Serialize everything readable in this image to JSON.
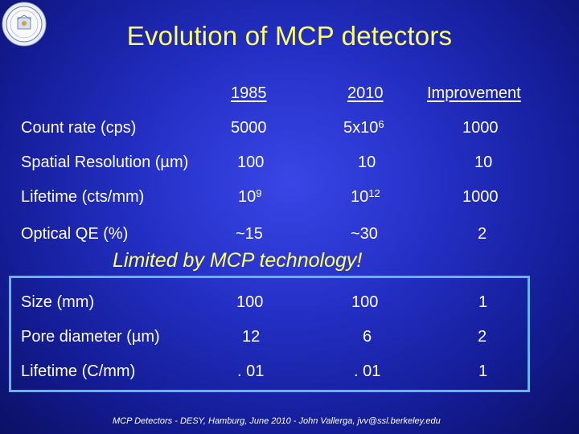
{
  "title": "Evolution of MCP detectors",
  "headers": {
    "c1985": "1985",
    "c2010": "2010",
    "improvement": "Improvement"
  },
  "rows_top": [
    {
      "label": "Count rate (cps)",
      "v1985": "5000",
      "v2010": "5x10",
      "v2010_exp": "6",
      "improvement": "1000"
    },
    {
      "label": "Spatial Resolution (µm)",
      "v1985": "100",
      "v2010": "10",
      "improvement": "10"
    },
    {
      "label": "Lifetime (cts/mm)",
      "v1985": "10",
      "v1985_exp": "9",
      "v2010": "10",
      "v2010_exp": "12",
      "improvement": "1000"
    },
    {
      "label": "Optical QE (%)",
      "v1985": "~15",
      "v2010": "~30",
      "improvement": "2"
    }
  ],
  "subtitle": "Limited by MCP technology!",
  "rows_box": [
    {
      "label": "Size (mm)",
      "v1985": "100",
      "v2010": "100",
      "improvement": "1"
    },
    {
      "label": "Pore diameter (µm)",
      "v1985": "12",
      "v2010": "6",
      "improvement": "2"
    },
    {
      "label": "Lifetime (C/mm)",
      "v1985": ". 01",
      "v2010": ". 01",
      "improvement": "1"
    }
  ],
  "footer": "MCP Detectors - DESY, Hamburg, June 2010 - John Vallerga, jvv@ssl.berkeley.edu",
  "colors": {
    "title": "#ffff66",
    "box_border": "#63b6e8",
    "text": "#ffffff"
  },
  "logo_icon": "university-seal-icon"
}
